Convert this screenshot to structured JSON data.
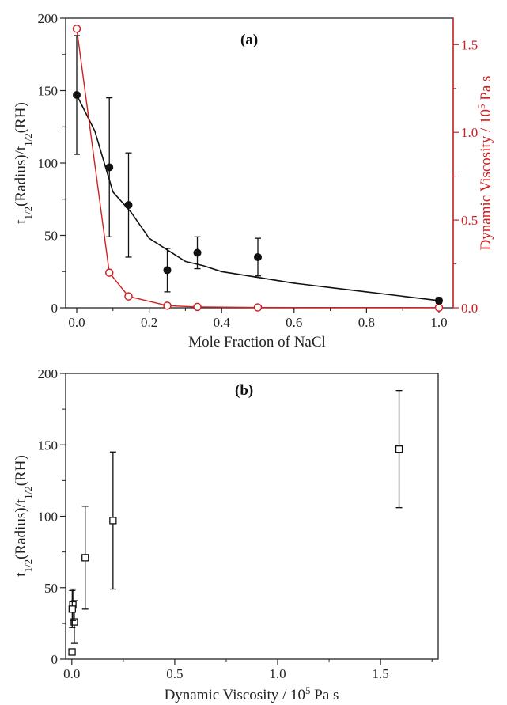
{
  "chart_data": [
    {
      "panel": "a",
      "type": "line",
      "panel_label": "(a)",
      "xlabel": "Mole Fraction of NaCl",
      "ylabel": "t1/2(Radius)/t1/2(RH)",
      "y2label": "Dynamic Viscosity / 10^5 Pa s",
      "xlim": [
        0,
        1.0
      ],
      "ylim": [
        0,
        200
      ],
      "y2lim": [
        0,
        1.65
      ],
      "xticks": [
        0.0,
        0.2,
        0.4,
        0.6,
        0.8,
        1.0
      ],
      "yticks": [
        0,
        50,
        100,
        150,
        200
      ],
      "y2ticks": [
        0.0,
        0.5,
        1.0,
        1.5
      ],
      "series": [
        {
          "axis": "left",
          "color": "#111111",
          "marker": "filled-circle",
          "points": [
            {
              "x": 0.0,
              "y": 147,
              "err_low": 106,
              "err_high": 188
            },
            {
              "x": 0.09,
              "y": 97,
              "err_low": 49,
              "err_high": 145
            },
            {
              "x": 0.143,
              "y": 71,
              "err_low": 35,
              "err_high": 107
            },
            {
              "x": 0.25,
              "y": 26,
              "err_low": 11,
              "err_high": 41
            },
            {
              "x": 0.333,
              "y": 38,
              "err_low": 27,
              "err_high": 49
            },
            {
              "x": 0.5,
              "y": 35,
              "err_low": 22,
              "err_high": 48
            },
            {
              "x": 1.0,
              "y": 5,
              "err_low": 3,
              "err_high": 7
            }
          ]
        },
        {
          "axis": "left",
          "color": "#111111",
          "marker": "none",
          "curve": [
            [
              0.0,
              147
            ],
            [
              0.05,
              122
            ],
            [
              0.1,
              80
            ],
            [
              0.15,
              66
            ],
            [
              0.2,
              48
            ],
            [
              0.25,
              40
            ],
            [
              0.3,
              32
            ],
            [
              0.35,
              29
            ],
            [
              0.4,
              25
            ],
            [
              0.5,
              21
            ],
            [
              0.6,
              17
            ],
            [
              0.7,
              14
            ],
            [
              0.8,
              11
            ],
            [
              0.9,
              8
            ],
            [
              1.0,
              5
            ]
          ]
        },
        {
          "axis": "right",
          "color": "#d02020",
          "marker": "open-circle",
          "points": [
            {
              "x": 0.0,
              "y": 1.59
            },
            {
              "x": 0.09,
              "y": 0.2
            },
            {
              "x": 0.143,
              "y": 0.065
            },
            {
              "x": 0.25,
              "y": 0.012
            },
            {
              "x": 0.333,
              "y": 0.005
            },
            {
              "x": 0.5,
              "y": 0.002
            },
            {
              "x": 1.0,
              "y": 0.001
            }
          ]
        }
      ]
    },
    {
      "panel": "b",
      "type": "scatter",
      "panel_label": "(b)",
      "xlabel": "Dynamic Viscosity / 10^5 Pa s",
      "ylabel": "t1/2(Radius)/t1/2(RH)",
      "xlim": [
        -0.03,
        1.78
      ],
      "ylim": [
        0,
        200
      ],
      "xticks": [
        0.0,
        0.5,
        1.0,
        1.5
      ],
      "yticks": [
        0,
        50,
        100,
        150,
        200
      ],
      "series": [
        {
          "color": "#111111",
          "marker": "open-square",
          "points": [
            {
              "x": 1.59,
              "y": 147,
              "err_low": 106,
              "err_high": 188
            },
            {
              "x": 0.2,
              "y": 97,
              "err_low": 49,
              "err_high": 145
            },
            {
              "x": 0.065,
              "y": 71,
              "err_low": 35,
              "err_high": 107
            },
            {
              "x": 0.012,
              "y": 26,
              "err_low": 11,
              "err_high": 41
            },
            {
              "x": 0.005,
              "y": 38,
              "err_low": 27,
              "err_high": 49
            },
            {
              "x": 0.002,
              "y": 35,
              "err_low": 22,
              "err_high": 48
            },
            {
              "x": 0.001,
              "y": 5,
              "err_low": 3,
              "err_high": 7
            }
          ]
        }
      ]
    }
  ]
}
